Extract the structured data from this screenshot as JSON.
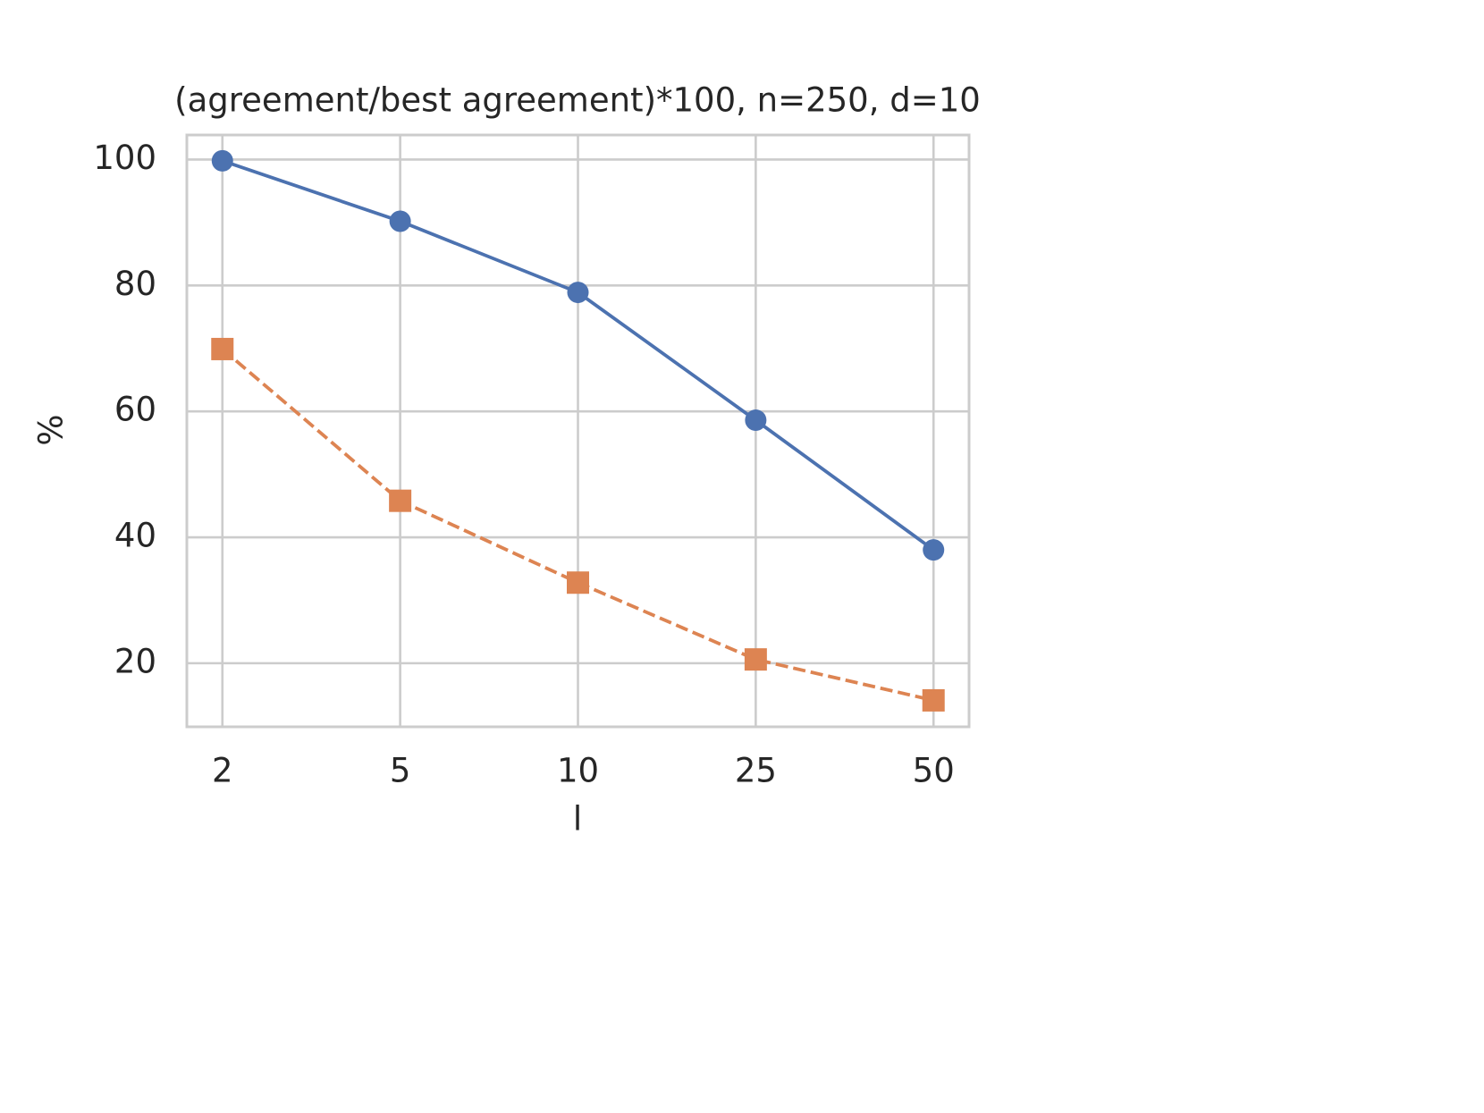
{
  "chart_data": {
    "type": "line",
    "title": "(agreement/best agreement)*100, n=250, d=10",
    "xlabel": "l",
    "ylabel": "%",
    "categories": [
      2,
      5,
      10,
      25,
      50
    ],
    "series": [
      {
        "color": "#4c72b0",
        "linestyle": "solid",
        "marker": "circle",
        "values": [
          99.8,
          90.2,
          78.9,
          58.6,
          38.0
        ]
      },
      {
        "color": "#dd8452",
        "linestyle": "dashed",
        "marker": "square",
        "values": [
          69.9,
          45.8,
          32.8,
          20.6,
          14.1
        ]
      }
    ],
    "ylim": [
      9.9,
      103.9
    ],
    "yticks": [
      20,
      40,
      60,
      80,
      100
    ],
    "grid": true
  }
}
